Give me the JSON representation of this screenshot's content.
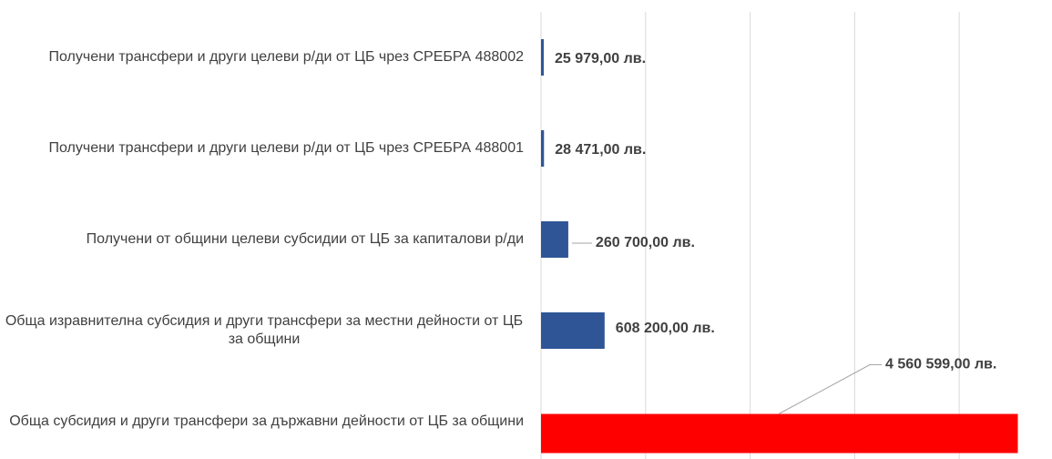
{
  "chart_data": {
    "type": "hbar",
    "categories": [
      "Получени трансфери и други целеви р/ди от ЦБ чрез СРЕБРА 488002",
      "Получени трансфери и други целеви р/ди от ЦБ чрез СРЕБРА 488001",
      "Получени от общини целеви субсидии от ЦБ за капиталови р/ди",
      "Обща изравнителна субсидия и други трансфери за местни дейности от ЦБ за общини",
      "Обща субсидия и други трансфери за държавни дейности от ЦБ за общини"
    ],
    "values": [
      25979,
      28471,
      260700,
      608200,
      4560599
    ],
    "value_labels": [
      "25 979,00 лв.",
      "28 471,00 лв.",
      "260 700,00 лв.",
      "608 200,00 лв.",
      "4 560 599,00 лв."
    ],
    "colors": [
      "#2f5597",
      "#2f5597",
      "#2f5597",
      "#2f5597",
      "#ff0000"
    ],
    "xlim": [
      0,
      4600000
    ],
    "xticks": [
      0,
      1000000,
      2000000,
      3000000,
      4000000
    ],
    "grid": true
  }
}
